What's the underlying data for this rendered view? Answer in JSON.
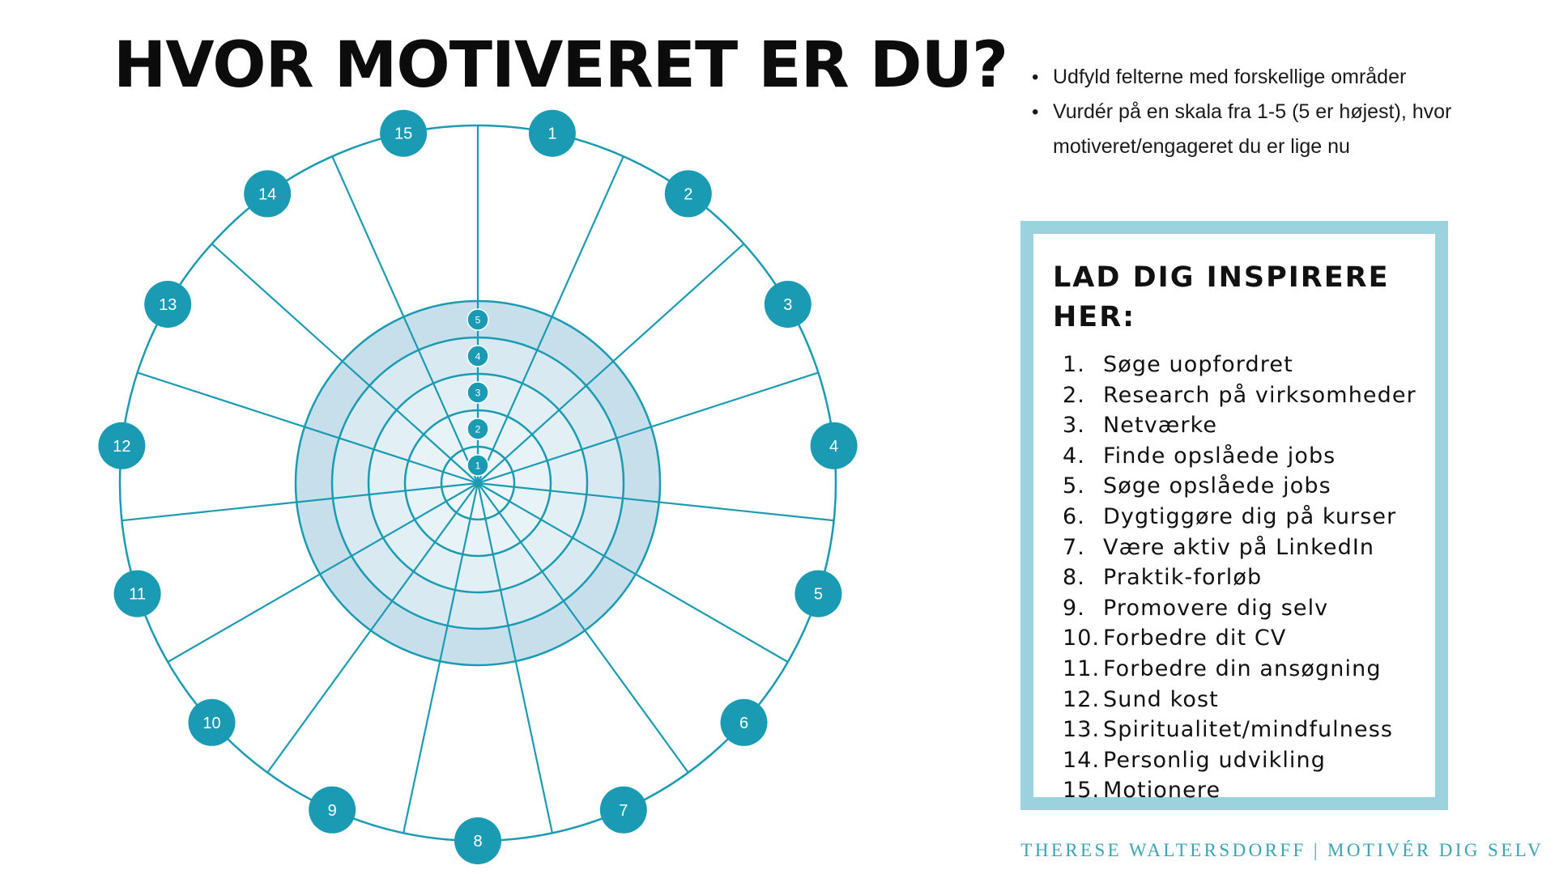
{
  "title": "HVOR MOTIVERET ER DU?",
  "instructions": [
    "Udfyld felterne med forskellige områder",
    "Vurdér på en skala fra 1-5 (5 er højest), hvor motiveret/engageret du er lige nu"
  ],
  "wheel": {
    "segments": [
      "1",
      "2",
      "3",
      "4",
      "5",
      "6",
      "7",
      "8",
      "9",
      "10",
      "11",
      "12",
      "13",
      "14",
      "15"
    ],
    "scale": [
      "1",
      "2",
      "3",
      "4",
      "5"
    ]
  },
  "inspire": {
    "heading": "LAD DIG INSPIRERE HER:",
    "items": [
      {
        "num": "1.",
        "text": "Søge uopfordret"
      },
      {
        "num": "2.",
        "text": "Research på virksomheder"
      },
      {
        "num": "3.",
        "text": "Netværke"
      },
      {
        "num": "4.",
        "text": "Finde opslåede jobs"
      },
      {
        "num": "5.",
        "text": "Søge opslåede jobs"
      },
      {
        "num": "6.",
        "text": "Dygtiggøre dig på kurser"
      },
      {
        "num": "7.",
        "text": "Være aktiv på LinkedIn"
      },
      {
        "num": "8.",
        "text": "Praktik-forløb"
      },
      {
        "num": "9.",
        "text": "Promovere dig selv"
      },
      {
        "num": "10.",
        "text": "Forbedre dit CV"
      },
      {
        "num": "11.",
        "text": "Forbedre din ansøgning"
      },
      {
        "num": "12.",
        "text": "Sund kost"
      },
      {
        "num": "13.",
        "text": "Spiritualitet/mindfulness"
      },
      {
        "num": "14.",
        "text": "Personlig udvikling"
      },
      {
        "num": "15.",
        "text": "Motionere"
      }
    ]
  },
  "footer": "THERESE WALTERSDORFF | MOTIVÉR DIG SELV",
  "colors": {
    "accent": "#1a9bb3",
    "inner_fill": "#c7dfea",
    "box_border": "#9bd2de",
    "footer": "#3aa4b5"
  }
}
